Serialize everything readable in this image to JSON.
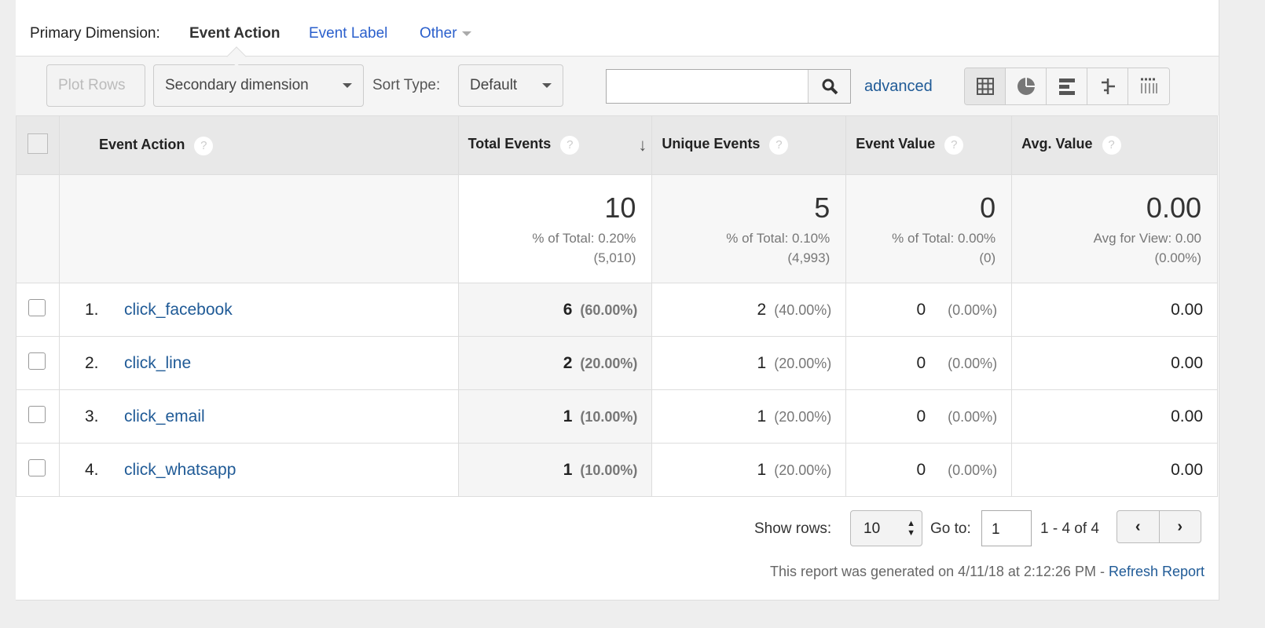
{
  "primary_dimension": {
    "label": "Primary Dimension:",
    "active": "Event Action",
    "options": [
      "Event Label",
      "Other"
    ]
  },
  "toolbar": {
    "plot_rows": "Plot Rows",
    "secondary_dimension": "Secondary dimension",
    "sort_type_label": "Sort Type:",
    "sort_type_value": "Default",
    "search_value": "",
    "advanced": "advanced",
    "view_icons": [
      "table-icon",
      "pie-icon",
      "performance-icon",
      "comparison-icon",
      "pivot-icon"
    ]
  },
  "table": {
    "headers": [
      "Event Action",
      "Total Events",
      "Unique Events",
      "Event Value",
      "Avg. Value"
    ],
    "summary": [
      {
        "value": "10",
        "line1": "% of Total: 0.20%",
        "line2": "(5,010)"
      },
      {
        "value": "5",
        "line1": "% of Total: 0.10%",
        "line2": "(4,993)"
      },
      {
        "value": "0",
        "line1": "% of Total: 0.00%",
        "line2": "(0)"
      },
      {
        "value": "0.00",
        "line1": "Avg for View: 0.00",
        "line2": "(0.00%)"
      }
    ],
    "rows": [
      {
        "index": "1.",
        "action": "click_facebook",
        "total": "6",
        "total_pct": "(60.00%)",
        "unique": "2",
        "unique_pct": "(40.00%)",
        "value": "0",
        "value_pct": "(0.00%)",
        "avg": "0.00"
      },
      {
        "index": "2.",
        "action": "click_line",
        "total": "2",
        "total_pct": "(20.00%)",
        "unique": "1",
        "unique_pct": "(20.00%)",
        "value": "0",
        "value_pct": "(0.00%)",
        "avg": "0.00"
      },
      {
        "index": "3.",
        "action": "click_email",
        "total": "1",
        "total_pct": "(10.00%)",
        "unique": "1",
        "unique_pct": "(20.00%)",
        "value": "0",
        "value_pct": "(0.00%)",
        "avg": "0.00"
      },
      {
        "index": "4.",
        "action": "click_whatsapp",
        "total": "1",
        "total_pct": "(10.00%)",
        "unique": "1",
        "unique_pct": "(20.00%)",
        "value": "0",
        "value_pct": "(0.00%)",
        "avg": "0.00"
      }
    ]
  },
  "footer": {
    "show_rows_label": "Show rows:",
    "show_rows_value": "10",
    "goto_label": "Go to:",
    "goto_value": "1",
    "range": "1 - 4 of 4",
    "generated": "This report was generated on 4/11/18 at 2:12:26 PM - ",
    "refresh": "Refresh Report"
  }
}
